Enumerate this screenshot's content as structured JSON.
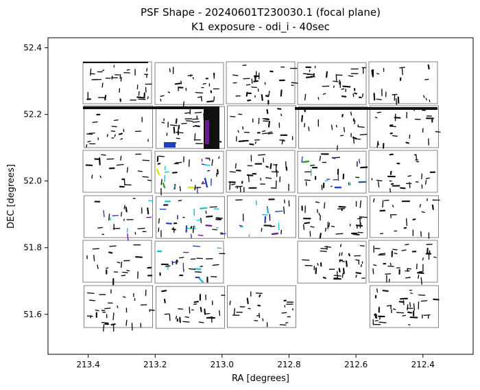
{
  "chart_data": {
    "type": "scatter",
    "title": "PSF Shape - 20240601T230030.1 (focal plane)",
    "subtitle": "K1 exposure - odi_i - 40sec",
    "xlabel": "RA [degrees]",
    "ylabel": "DEC [degrees]",
    "x_ticks": [
      "213.4",
      "213.2",
      "213.0",
      "212.8",
      "212.6",
      "212.4"
    ],
    "y_ticks": [
      "51.6",
      "51.8",
      "52.0",
      "52.2",
      "52.4"
    ],
    "xlim": [
      213.52,
      212.25
    ],
    "ylim": [
      51.48,
      52.43
    ],
    "grid": false,
    "x_axis_inverted": true,
    "colors": {
      "frame": "#000000",
      "ota_outline": "#808080",
      "psf_default": "#111111",
      "psf_purple": "#6a1b9a",
      "psf_blue": "#1f3fbf",
      "psf_cyan": "#17becf",
      "psf_green": "#2ca02c",
      "psf_yellow": "#d4e600"
    },
    "ota_grid": {
      "columns": 5,
      "rows": 6,
      "cell_width_deg": 0.205,
      "cell_height_deg": 0.128,
      "missing_cells": [
        [
          5,
          3
        ]
      ],
      "note": "The figure shows detector outlines with many short PSF-shape strokes inside each OTA."
    }
  }
}
